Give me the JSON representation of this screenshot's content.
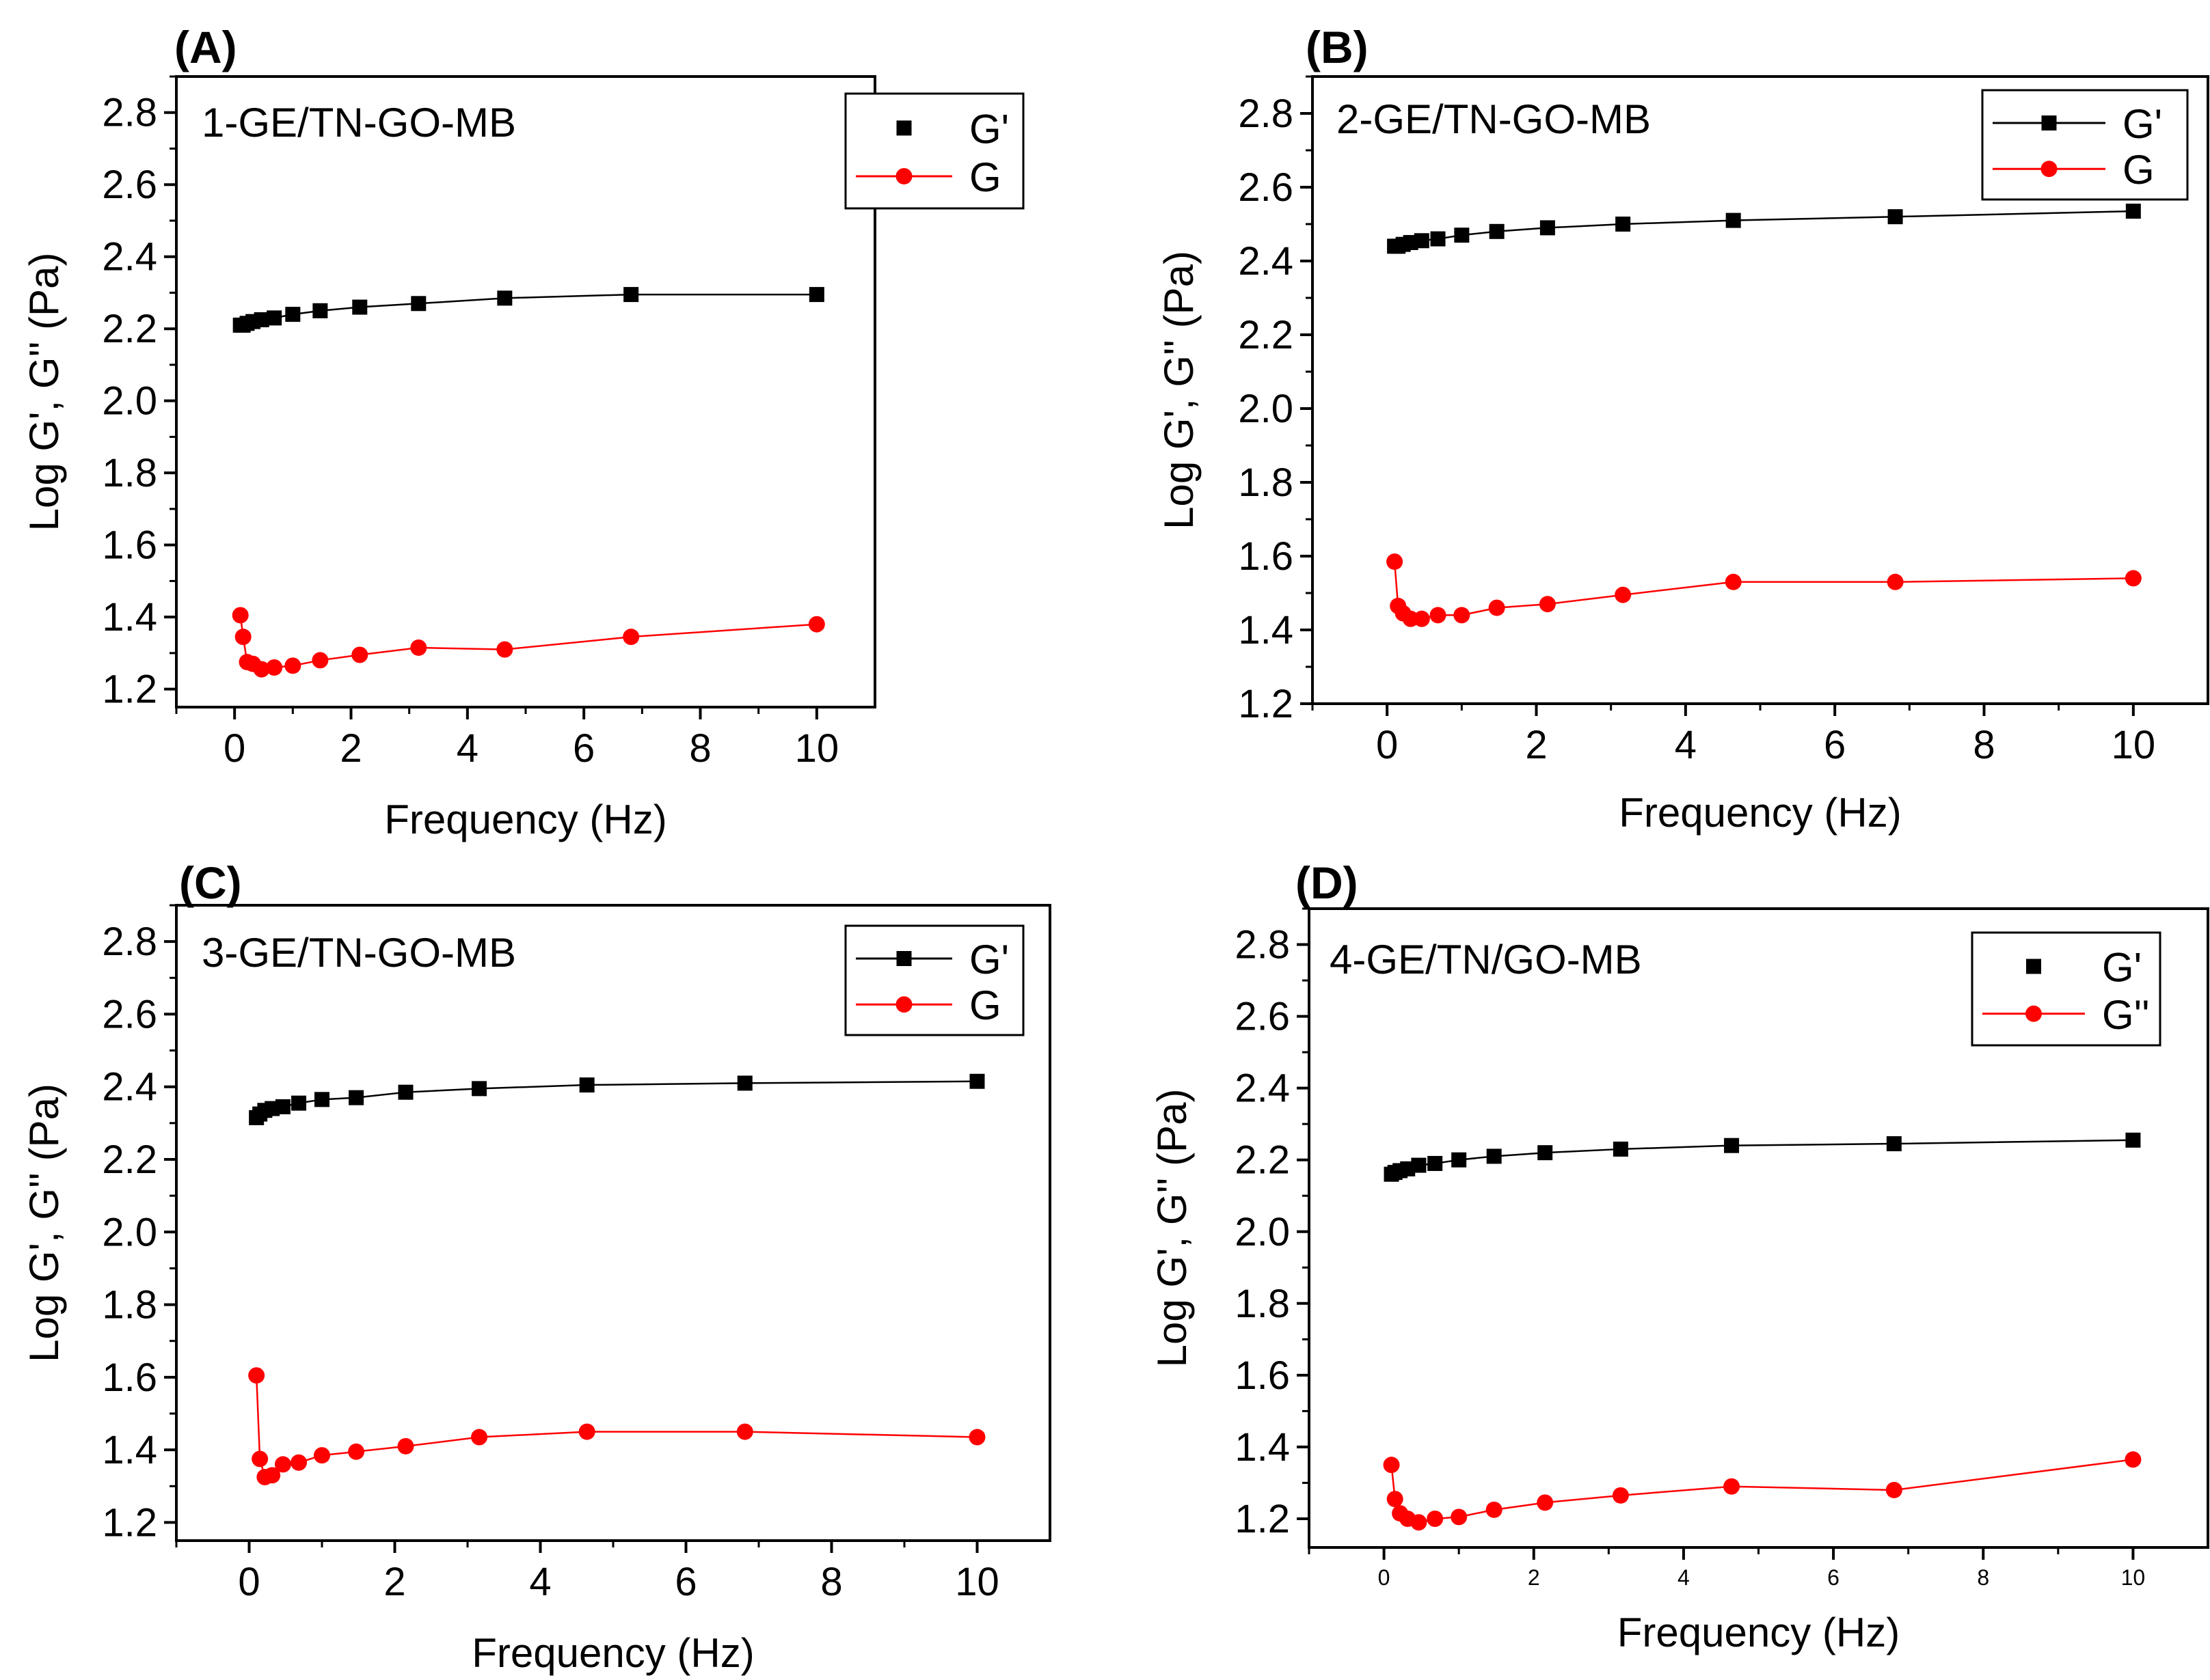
{
  "figure": {
    "panels": [
      {
        "letter": "(A)",
        "sample_label": "1-GE/TN-GO-MB"
      },
      {
        "letter": "(B)",
        "sample_label": "2-GE/TN-GO-MB"
      },
      {
        "letter": "(C)",
        "sample_label": "3-GE/TN-GO-MB"
      },
      {
        "letter": "(D)",
        "sample_label": "4-GE/TN/GO-MB"
      }
    ]
  },
  "colors": {
    "g_prime": "#000000",
    "g_double_prime": "#ff0000"
  },
  "chart_data": [
    {
      "type": "line",
      "title": "1-GE/TN-GO-MB",
      "xlabel": "Frequency (Hz)",
      "ylabel": "Log G', G'' (Pa)",
      "xlim": [
        -1,
        11
      ],
      "ylim": [
        1.15,
        2.9
      ],
      "xticks": [
        "0",
        "2",
        "4",
        "6",
        "8",
        "10"
      ],
      "yticks": [
        "1.2",
        "1.4",
        "1.6",
        "1.8",
        "2.0",
        "2.2",
        "2.4",
        "2.6",
        "2.8"
      ],
      "legend": [
        "G'",
        "G"
      ],
      "x": [
        0.1,
        0.147,
        0.215,
        0.316,
        0.464,
        0.681,
        1.0,
        1.47,
        2.15,
        3.16,
        4.64,
        6.81,
        10.0
      ],
      "series": [
        {
          "name": "G'",
          "marker": "square",
          "values": [
            2.21,
            2.21,
            2.215,
            2.22,
            2.225,
            2.23,
            2.24,
            2.25,
            2.26,
            2.27,
            2.285,
            2.295,
            2.295
          ]
        },
        {
          "name": "G",
          "marker": "circle",
          "values": [
            1.405,
            1.345,
            1.275,
            1.27,
            1.255,
            1.26,
            1.265,
            1.28,
            1.295,
            1.315,
            1.31,
            1.345,
            1.38
          ]
        }
      ]
    },
    {
      "type": "line",
      "title": "2-GE/TN-GO-MB",
      "xlabel": "Frequency (Hz)",
      "ylabel": "Log G', G'' (Pa)",
      "xlim": [
        -1,
        11
      ],
      "ylim": [
        1.2,
        2.9
      ],
      "xticks": [
        "0",
        "2",
        "4",
        "6",
        "8",
        "10"
      ],
      "yticks": [
        "1.2",
        "1.4",
        "1.6",
        "1.8",
        "2.0",
        "2.2",
        "2.4",
        "2.6",
        "2.8"
      ],
      "legend": [
        "G'",
        "G"
      ],
      "x": [
        0.1,
        0.147,
        0.215,
        0.316,
        0.464,
        0.681,
        1.0,
        1.47,
        2.15,
        3.16,
        4.64,
        6.81,
        10.0
      ],
      "series": [
        {
          "name": "G'",
          "marker": "square",
          "values": [
            2.44,
            2.44,
            2.445,
            2.45,
            2.455,
            2.46,
            2.47,
            2.48,
            2.49,
            2.5,
            2.51,
            2.52,
            2.535
          ]
        },
        {
          "name": "G",
          "marker": "circle",
          "values": [
            1.585,
            1.465,
            1.445,
            1.43,
            1.43,
            1.44,
            1.44,
            1.46,
            1.47,
            1.495,
            1.53,
            1.53,
            1.54
          ]
        }
      ]
    },
    {
      "type": "line",
      "title": "3-GE/TN-GO-MB",
      "xlabel": "Frequency (Hz)",
      "ylabel": "Log G', G'' (Pa)",
      "xlim": [
        -1,
        11
      ],
      "ylim": [
        1.15,
        2.9
      ],
      "xticks": [
        "0",
        "2",
        "4",
        "6",
        "8",
        "10"
      ],
      "yticks": [
        "1.2",
        "1.4",
        "1.6",
        "1.8",
        "2.0",
        "2.2",
        "2.4",
        "2.6",
        "2.8"
      ],
      "legend": [
        "G'",
        "G"
      ],
      "x": [
        0.1,
        0.147,
        0.215,
        0.316,
        0.464,
        0.681,
        1.0,
        1.47,
        2.15,
        3.16,
        4.64,
        6.81,
        10.0
      ],
      "series": [
        {
          "name": "G'",
          "marker": "square",
          "values": [
            2.315,
            2.325,
            2.335,
            2.34,
            2.345,
            2.355,
            2.365,
            2.37,
            2.385,
            2.395,
            2.405,
            2.41,
            2.415
          ]
        },
        {
          "name": "G",
          "marker": "circle",
          "values": [
            1.605,
            1.375,
            1.325,
            1.33,
            1.36,
            1.365,
            1.385,
            1.395,
            1.41,
            1.435,
            1.45,
            1.45,
            1.435
          ]
        }
      ]
    },
    {
      "type": "line",
      "title": "4-GE/TN/GO-MB",
      "xlabel": "Frequency (Hz)",
      "ylabel": "Log G', G'' (Pa)",
      "xlim": [
        -1,
        11
      ],
      "ylim": [
        1.12,
        2.9
      ],
      "xticks": [
        "0",
        "2",
        "4",
        "6",
        "8",
        "10"
      ],
      "yticks": [
        "1.2",
        "1.4",
        "1.6",
        "1.8",
        "2.0",
        "2.2",
        "2.4",
        "2.6",
        "2.8"
      ],
      "legend": [
        "G'",
        "G''"
      ],
      "x": [
        0.1,
        0.147,
        0.215,
        0.316,
        0.464,
        0.681,
        1.0,
        1.47,
        2.15,
        3.16,
        4.64,
        6.81,
        10.0
      ],
      "series": [
        {
          "name": "G'",
          "marker": "square",
          "values": [
            2.16,
            2.165,
            2.17,
            2.175,
            2.185,
            2.19,
            2.2,
            2.21,
            2.22,
            2.23,
            2.24,
            2.245,
            2.255
          ]
        },
        {
          "name": "G''",
          "marker": "circle",
          "values": [
            1.35,
            1.255,
            1.215,
            1.2,
            1.19,
            1.2,
            1.205,
            1.225,
            1.245,
            1.265,
            1.29,
            1.28,
            1.365
          ]
        }
      ]
    }
  ]
}
